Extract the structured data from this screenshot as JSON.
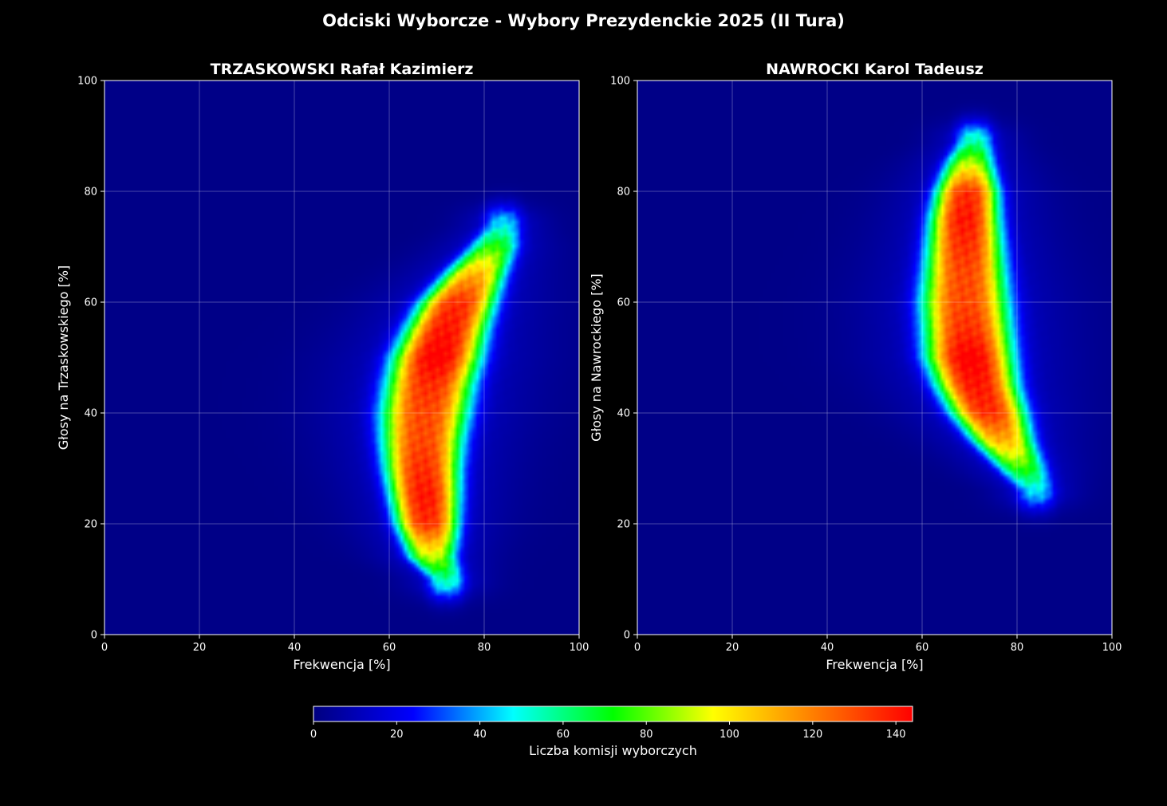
{
  "figure_title": "Odciski Wyborcze - Wybory Prezydenckie 2025 (II Tura)",
  "chart_data": [
    {
      "type": "heatmap",
      "title": "TRZASKOWSKI Rafał Kazimierz",
      "xlabel": "Frekwencja [%]",
      "ylabel": "Głosy na Trzaskowskiego [%]",
      "xlim": [
        0,
        100
      ],
      "ylim": [
        0,
        100
      ],
      "xticks": [
        "0",
        "20",
        "40",
        "60",
        "80",
        "100"
      ],
      "yticks": [
        "0",
        "20",
        "40",
        "60",
        "80",
        "100"
      ],
      "grid": true,
      "density_ridge": [
        {
          "y": 10,
          "x": 72,
          "w": 3,
          "peak": 40
        },
        {
          "y": 14,
          "x": 69,
          "w": 4,
          "peak": 75
        },
        {
          "y": 20,
          "x": 68,
          "w": 5,
          "peak": 120
        },
        {
          "y": 25,
          "x": 67.5,
          "w": 5.5,
          "peak": 125
        },
        {
          "y": 30,
          "x": 67,
          "w": 6,
          "peak": 120
        },
        {
          "y": 35,
          "x": 67,
          "w": 6.5,
          "peak": 115
        },
        {
          "y": 40,
          "x": 67.5,
          "w": 7,
          "peak": 115
        },
        {
          "y": 45,
          "x": 68.5,
          "w": 7,
          "peak": 120
        },
        {
          "y": 50,
          "x": 70,
          "w": 7,
          "peak": 130
        },
        {
          "y": 55,
          "x": 72,
          "w": 6.5,
          "peak": 125
        },
        {
          "y": 60,
          "x": 74.5,
          "w": 6,
          "peak": 120
        },
        {
          "y": 65,
          "x": 78,
          "w": 5,
          "peak": 95
        },
        {
          "y": 70,
          "x": 82,
          "w": 4,
          "peak": 60
        },
        {
          "y": 74,
          "x": 84,
          "w": 3,
          "peak": 30
        }
      ]
    },
    {
      "type": "heatmap",
      "title": "NAWROCKI Karol Tadeusz",
      "xlabel": "Frekwencja [%]",
      "ylabel": "Głosy na Nawrockiego [%]",
      "xlim": [
        0,
        100
      ],
      "ylim": [
        0,
        100
      ],
      "xticks": [
        "0",
        "20",
        "40",
        "60",
        "80",
        "100"
      ],
      "yticks": [
        "0",
        "20",
        "40",
        "60",
        "80",
        "100"
      ],
      "grid": true,
      "density_ridge": [
        {
          "y": 26,
          "x": 84,
          "w": 3,
          "peak": 30
        },
        {
          "y": 30,
          "x": 81,
          "w": 4,
          "peak": 60
        },
        {
          "y": 35,
          "x": 77,
          "w": 5,
          "peak": 95
        },
        {
          "y": 40,
          "x": 74,
          "w": 6,
          "peak": 120
        },
        {
          "y": 45,
          "x": 71.5,
          "w": 6.5,
          "peak": 125
        },
        {
          "y": 50,
          "x": 70,
          "w": 7,
          "peak": 130
        },
        {
          "y": 55,
          "x": 69.5,
          "w": 7,
          "peak": 120
        },
        {
          "y": 60,
          "x": 69,
          "w": 7,
          "peak": 115
        },
        {
          "y": 65,
          "x": 69,
          "w": 6.5,
          "peak": 115
        },
        {
          "y": 70,
          "x": 69,
          "w": 6,
          "peak": 120
        },
        {
          "y": 75,
          "x": 69,
          "w": 5.5,
          "peak": 125
        },
        {
          "y": 80,
          "x": 69.5,
          "w": 5,
          "peak": 120
        },
        {
          "y": 85,
          "x": 70,
          "w": 4,
          "peak": 75
        },
        {
          "y": 89,
          "x": 71,
          "w": 3,
          "peak": 40
        }
      ]
    }
  ],
  "colorbar": {
    "label": "Liczba komisji wyborczych",
    "min": 0,
    "max": 144,
    "ticks": [
      "0",
      "20",
      "40",
      "60",
      "80",
      "100",
      "120",
      "140"
    ],
    "colors": [
      "#00007f",
      "#0000ff",
      "#00ffff",
      "#00ff00",
      "#ffff00",
      "#ff7f00",
      "#ff0000"
    ]
  }
}
